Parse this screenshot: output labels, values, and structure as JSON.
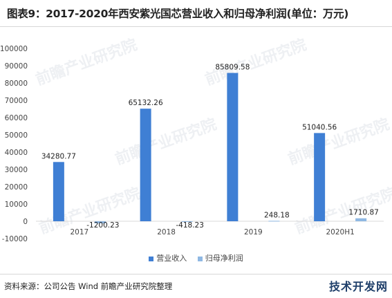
{
  "header": {
    "title": "图表9：2017-2020年西安紫光国芯营业收入和归母净利润(单位：万元)"
  },
  "footer": {
    "source": "资料来源：公司公告 Wind 前瞻产业研究院整理",
    "brand": "技术开发网"
  },
  "watermark": {
    "text": "前瞻产业研究院"
  },
  "colors": {
    "revenue": "#3f7fd4",
    "profit": "#8fb8e3",
    "grid": "#d9d9d9"
  },
  "chart_data": {
    "type": "bar",
    "title": "2017-2020年西安紫光国芯营业收入和归母净利润(单位：万元)",
    "categories": [
      "2017",
      "2018",
      "2019",
      "2020H1"
    ],
    "series": [
      {
        "name": "营业收入",
        "values": [
          34280.77,
          65132.26,
          85809.58,
          51040.56
        ],
        "labels": [
          "34280.77",
          "65132.26",
          "85809.58",
          "51040.56"
        ]
      },
      {
        "name": "归母净利润",
        "values": [
          -1200.23,
          -418.23,
          248.18,
          1710.87
        ],
        "labels": [
          "-1200.23",
          "-418.23",
          "248.18",
          "1710.87"
        ]
      }
    ],
    "ylim": [
      -10000,
      100000
    ],
    "yticks": [
      -10000,
      0,
      10000,
      20000,
      30000,
      40000,
      50000,
      60000,
      70000,
      80000,
      90000,
      100000
    ],
    "ytick_labels": [
      "-10000",
      "0",
      "10000",
      "20000",
      "30000",
      "40000",
      "50000",
      "60000",
      "70000",
      "80000",
      "90000",
      "100000"
    ],
    "grid": false,
    "legend": "bottom"
  }
}
